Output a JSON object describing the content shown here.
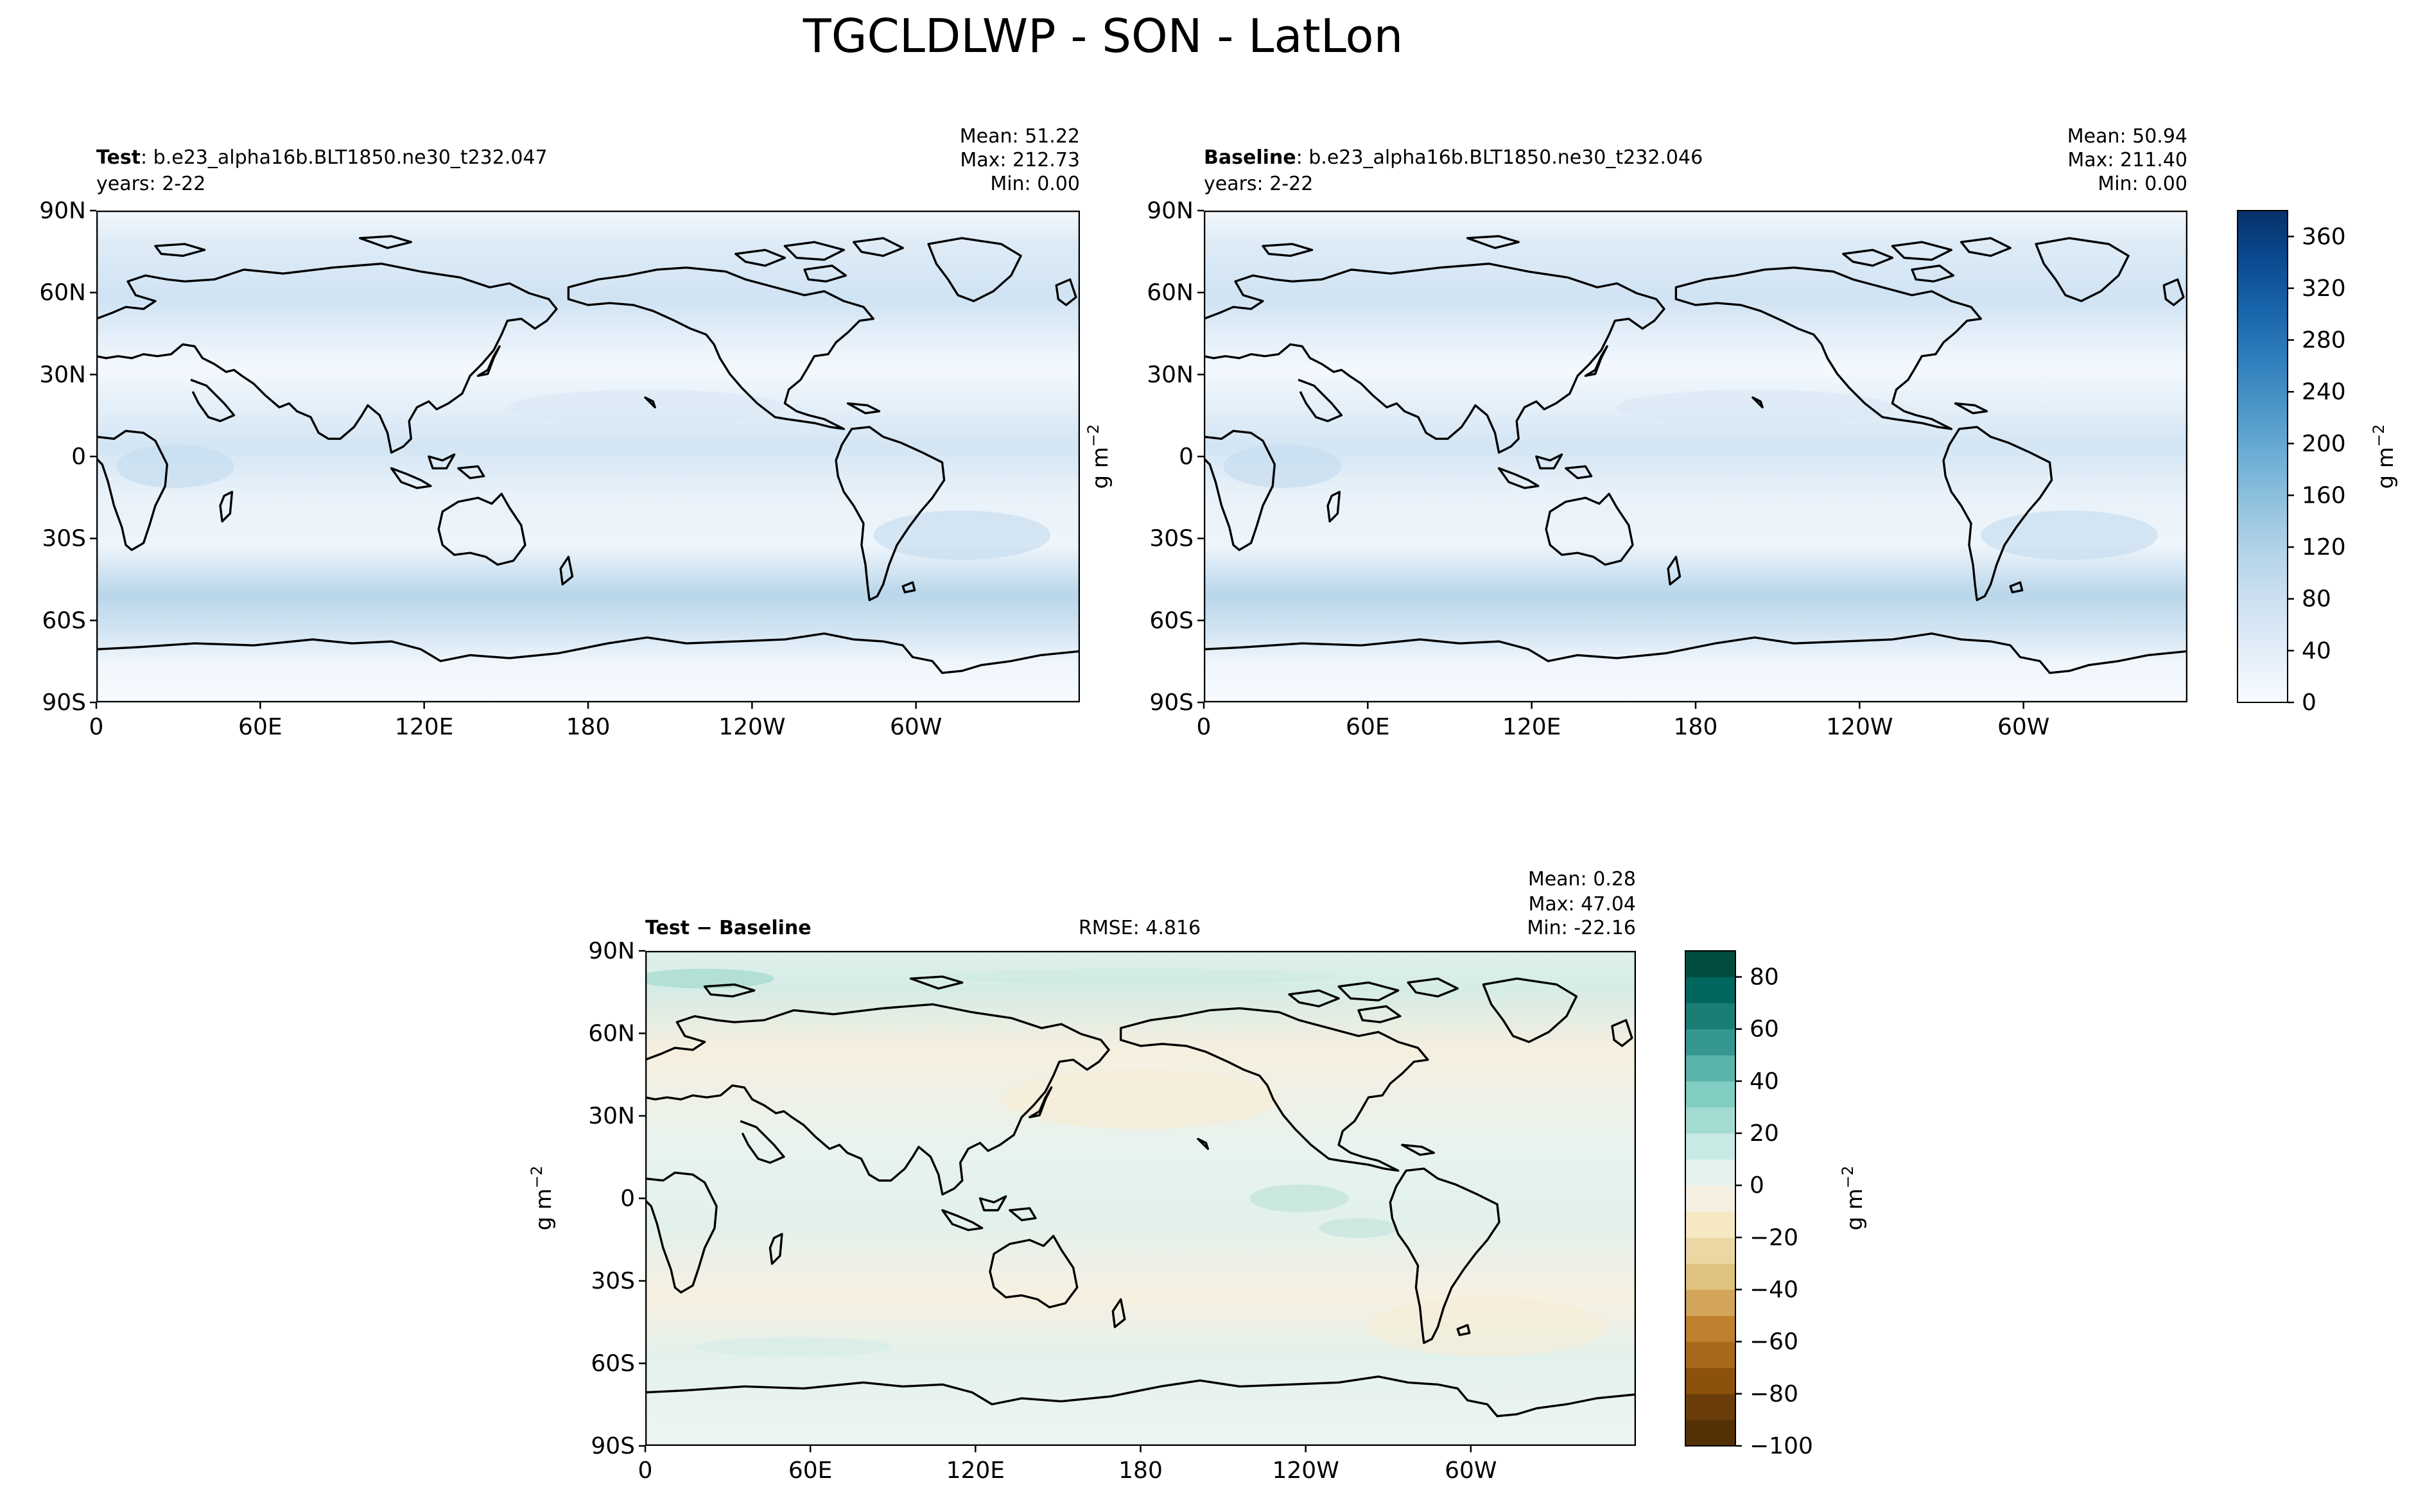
{
  "figure": {
    "title": "TGCLDLWP - SON - LatLon"
  },
  "colors": {
    "land_outline": "#000000",
    "blues_ramp": [
      "#f7fbff",
      "#e3eef9",
      "#cfe1f2",
      "#b5d4e9",
      "#93c3df",
      "#6daed5",
      "#4b97c9",
      "#2f7ebc",
      "#1864aa",
      "#0a4a90",
      "#08306b"
    ],
    "brbg_ramp": [
      "#543005",
      "#6b3d0a",
      "#8c510a",
      "#a8691c",
      "#bf812d",
      "#d2a55a",
      "#dfc27d",
      "#ebd7a4",
      "#f6e8c3",
      "#f5f0e2",
      "#e6f2ef",
      "#c7eae5",
      "#a3dbd3",
      "#80cdc1",
      "#5ab4ac",
      "#35978f",
      "#1b7d74",
      "#01665e",
      "#004d40"
    ]
  },
  "panels": {
    "test": {
      "label_bold": "Test",
      "label_rest": ": b.e23_alpha16b.BLT1850.ne30_t232.047",
      "years": "years: 2-22",
      "mean": "Mean: 51.22",
      "max": "Max: 212.73",
      "min": "Min:  0.00",
      "ylabel": "g m",
      "ylabel_sup": "−2"
    },
    "baseline": {
      "label_bold": "Baseline",
      "label_rest": ": b.e23_alpha16b.BLT1850.ne30_t232.046",
      "years": "years: 2-22",
      "mean": "Mean: 50.94",
      "max": "Max: 211.40",
      "min": "Min:  0.00",
      "ylabel": "g m",
      "ylabel_sup": "−2"
    },
    "diff": {
      "label_bold": "Test − Baseline",
      "rmse": "RMSE: 4.816",
      "mean": "Mean:  0.28",
      "max": "Max: 47.04",
      "min": "Min: -22.16",
      "ylabel": "g m",
      "ylabel_sup": "−2"
    }
  },
  "axes": {
    "lat_ticks": [
      "90N",
      "60N",
      "30N",
      "0",
      "30S",
      "60S",
      "90S"
    ],
    "lon_ticks": [
      "0",
      "60E",
      "120E",
      "180",
      "120W",
      "60W"
    ]
  },
  "colorbars": {
    "top": {
      "ticks": [
        "0",
        "40",
        "80",
        "120",
        "160",
        "200",
        "240",
        "280",
        "320",
        "360"
      ],
      "label": "g m",
      "label_sup": "−2"
    },
    "diff": {
      "ticks": [
        "−100",
        "−80",
        "−60",
        "−40",
        "−20",
        "0",
        "20",
        "40",
        "60",
        "80"
      ],
      "label": "g m",
      "label_sup": "−2"
    }
  },
  "chart_data": [
    {
      "type": "heatmap",
      "title": "Test",
      "x_range": [
        0,
        360
      ],
      "y_range": [
        -90,
        90
      ],
      "mean": 51.22,
      "max": 212.73,
      "min": 0.0,
      "colormap": "Blues",
      "clim": [
        0,
        380
      ]
    },
    {
      "type": "heatmap",
      "title": "Baseline",
      "x_range": [
        0,
        360
      ],
      "y_range": [
        -90,
        90
      ],
      "mean": 50.94,
      "max": 211.4,
      "min": 0.0,
      "colormap": "Blues",
      "clim": [
        0,
        380
      ]
    },
    {
      "type": "heatmap",
      "title": "Test − Baseline",
      "x_range": [
        0,
        360
      ],
      "y_range": [
        -90,
        90
      ],
      "mean": 0.28,
      "max": 47.04,
      "min": -22.16,
      "rmse": 4.816,
      "colormap": "BrBG",
      "clim": [
        -100,
        90
      ]
    }
  ]
}
